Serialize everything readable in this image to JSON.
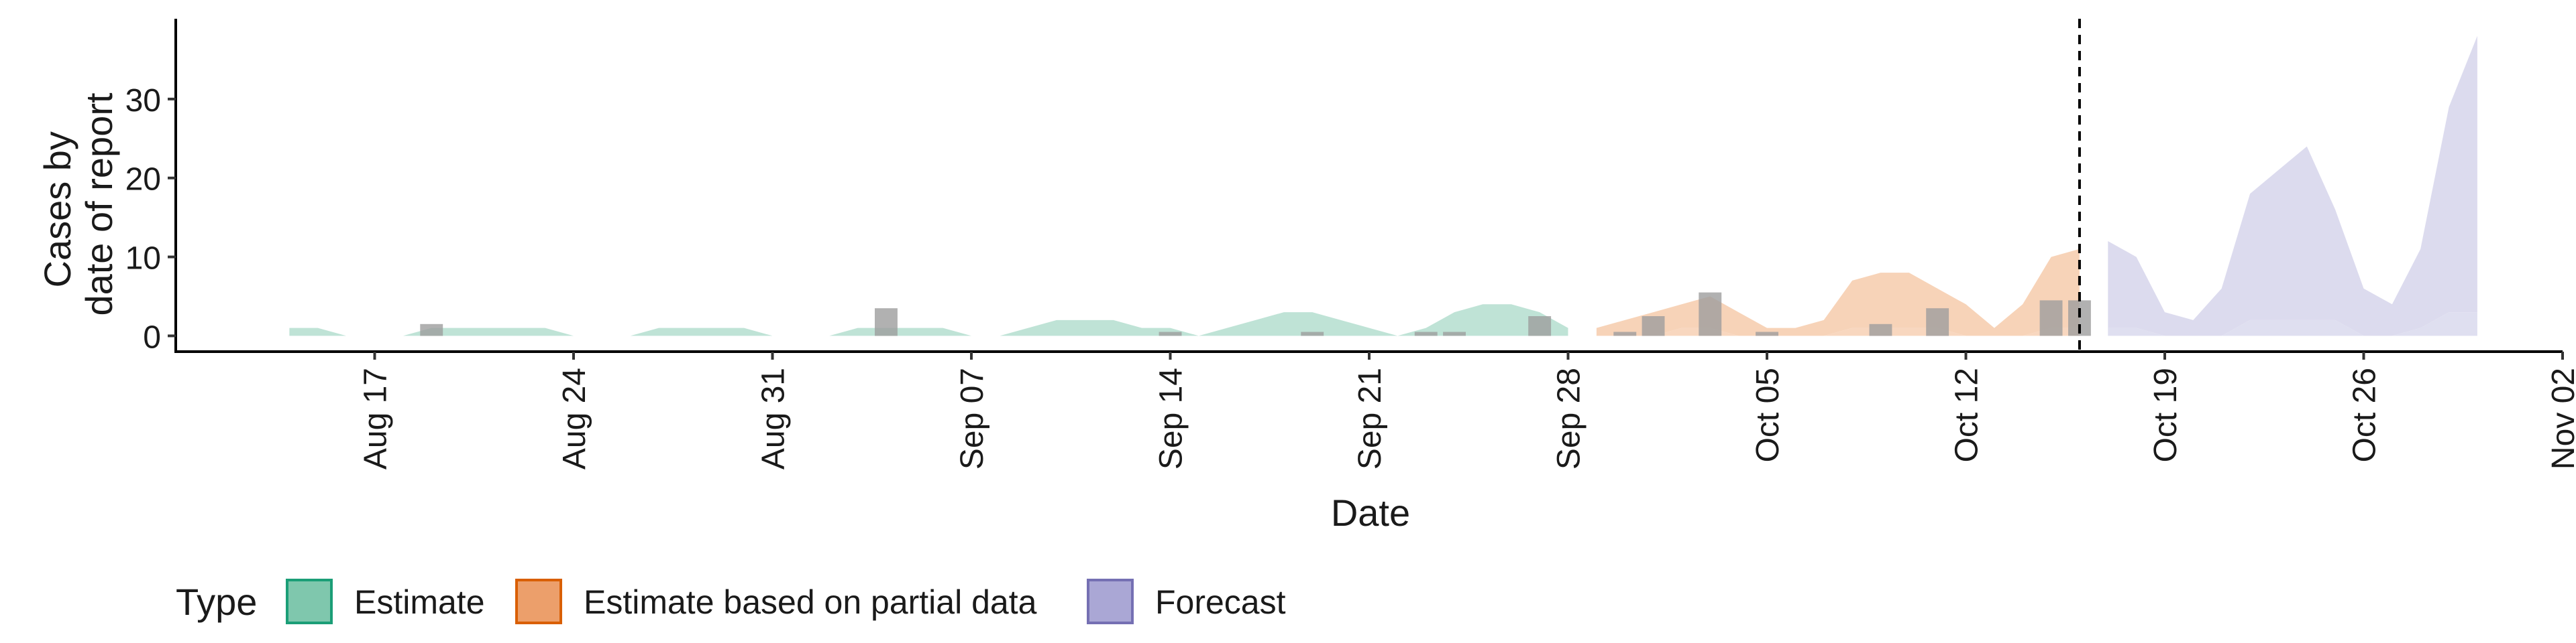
{
  "chart_data": {
    "type": "area",
    "xlabel": "Date",
    "ylabel_lines": [
      "Cases by",
      "date of report"
    ],
    "x_tick_labels": [
      "Aug 17",
      "Aug 24",
      "Aug 31",
      "Sep 07",
      "Sep 14",
      "Sep 21",
      "Sep 28",
      "Oct 05",
      "Oct 12",
      "Oct 19",
      "Oct 26",
      "Nov 02"
    ],
    "x_tick_dates": [
      "2020-08-17",
      "2020-08-24",
      "2020-08-31",
      "2020-09-07",
      "2020-09-14",
      "2020-09-21",
      "2020-09-28",
      "2020-10-05",
      "2020-10-12",
      "2020-10-19",
      "2020-10-26",
      "2020-11-02"
    ],
    "xlim": [
      "2020-08-10",
      "2020-11-02"
    ],
    "ylim": [
      -2,
      40
    ],
    "y_ticks": [
      0,
      10,
      20,
      30
    ],
    "vline_date": "2020-10-16",
    "series": [
      {
        "name": "Estimate",
        "color": "#1b9e77",
        "fill": "#bfe3d6",
        "upper": [
          [
            "2020-08-14",
            1
          ],
          [
            "2020-08-15",
            1
          ],
          [
            "2020-08-16",
            0
          ],
          [
            "2020-08-17",
            0
          ],
          [
            "2020-08-18",
            0
          ],
          [
            "2020-08-19",
            1
          ],
          [
            "2020-08-20",
            1
          ],
          [
            "2020-08-21",
            1
          ],
          [
            "2020-08-22",
            1
          ],
          [
            "2020-08-23",
            1
          ],
          [
            "2020-08-24",
            0
          ],
          [
            "2020-08-25",
            0
          ],
          [
            "2020-08-26",
            0
          ],
          [
            "2020-08-27",
            1
          ],
          [
            "2020-08-28",
            1
          ],
          [
            "2020-08-29",
            1
          ],
          [
            "2020-08-30",
            1
          ],
          [
            "2020-08-31",
            0
          ],
          [
            "2020-09-01",
            0
          ],
          [
            "2020-09-02",
            0
          ],
          [
            "2020-09-03",
            1
          ],
          [
            "2020-09-04",
            1
          ],
          [
            "2020-09-05",
            1
          ],
          [
            "2020-09-06",
            1
          ],
          [
            "2020-09-07",
            0
          ],
          [
            "2020-09-08",
            0
          ],
          [
            "2020-09-09",
            1
          ],
          [
            "2020-09-10",
            2
          ],
          [
            "2020-09-11",
            2
          ],
          [
            "2020-09-12",
            2
          ],
          [
            "2020-09-13",
            1
          ],
          [
            "2020-09-14",
            1
          ],
          [
            "2020-09-15",
            0
          ],
          [
            "2020-09-16",
            1
          ],
          [
            "2020-09-17",
            2
          ],
          [
            "2020-09-18",
            3
          ],
          [
            "2020-09-19",
            3
          ],
          [
            "2020-09-20",
            2
          ],
          [
            "2020-09-21",
            1
          ],
          [
            "2020-09-22",
            0
          ],
          [
            "2020-09-23",
            1
          ],
          [
            "2020-09-24",
            3
          ],
          [
            "2020-09-25",
            4
          ],
          [
            "2020-09-26",
            4
          ],
          [
            "2020-09-27",
            3
          ],
          [
            "2020-09-28",
            1
          ]
        ],
        "lower": []
      },
      {
        "name": "Estimate based on partial data",
        "color": "#d95f02",
        "fill": "#f7d3b8",
        "upper": [
          [
            "2020-09-29",
            1
          ],
          [
            "2020-09-30",
            2
          ],
          [
            "2020-10-01",
            3
          ],
          [
            "2020-10-02",
            4
          ],
          [
            "2020-10-03",
            5
          ],
          [
            "2020-10-04",
            3
          ],
          [
            "2020-10-05",
            1
          ],
          [
            "2020-10-06",
            1
          ],
          [
            "2020-10-07",
            2
          ],
          [
            "2020-10-08",
            7
          ],
          [
            "2020-10-09",
            8
          ],
          [
            "2020-10-10",
            8
          ],
          [
            "2020-10-11",
            6
          ],
          [
            "2020-10-12",
            4
          ],
          [
            "2020-10-13",
            1
          ],
          [
            "2020-10-14",
            4
          ],
          [
            "2020-10-15",
            10
          ],
          [
            "2020-10-16",
            11
          ]
        ],
        "lower": [
          [
            "2020-09-29",
            0
          ],
          [
            "2020-09-30",
            0
          ],
          [
            "2020-10-01",
            0
          ],
          [
            "2020-10-02",
            1
          ],
          [
            "2020-10-03",
            1
          ],
          [
            "2020-10-04",
            0
          ],
          [
            "2020-10-05",
            0
          ],
          [
            "2020-10-06",
            0
          ],
          [
            "2020-10-07",
            0
          ],
          [
            "2020-10-08",
            1
          ],
          [
            "2020-10-09",
            1
          ],
          [
            "2020-10-10",
            1
          ],
          [
            "2020-10-11",
            1
          ],
          [
            "2020-10-12",
            0
          ],
          [
            "2020-10-13",
            0
          ],
          [
            "2020-10-14",
            0
          ],
          [
            "2020-10-15",
            1
          ],
          [
            "2020-10-16",
            1
          ]
        ]
      },
      {
        "name": "Forecast",
        "color": "#7570b3",
        "fill": "#dcdbee",
        "upper": [
          [
            "2020-10-17",
            12
          ],
          [
            "2020-10-18",
            10
          ],
          [
            "2020-10-19",
            3
          ],
          [
            "2020-10-20",
            2
          ],
          [
            "2020-10-21",
            6
          ],
          [
            "2020-10-22",
            18
          ],
          [
            "2020-10-23",
            21
          ],
          [
            "2020-10-24",
            24
          ],
          [
            "2020-10-25",
            16
          ],
          [
            "2020-10-26",
            6
          ],
          [
            "2020-10-27",
            4
          ],
          [
            "2020-10-28",
            11
          ],
          [
            "2020-10-29",
            29
          ],
          [
            "2020-10-30",
            38
          ]
        ],
        "lower": [
          [
            "2020-10-17",
            1
          ],
          [
            "2020-10-18",
            1
          ],
          [
            "2020-10-19",
            0
          ],
          [
            "2020-10-20",
            0
          ],
          [
            "2020-10-21",
            0
          ],
          [
            "2020-10-22",
            2
          ],
          [
            "2020-10-23",
            2
          ],
          [
            "2020-10-24",
            2
          ],
          [
            "2020-10-25",
            2
          ],
          [
            "2020-10-26",
            0
          ],
          [
            "2020-10-27",
            0
          ],
          [
            "2020-10-28",
            1
          ],
          [
            "2020-10-29",
            3
          ],
          [
            "2020-10-30",
            3
          ]
        ]
      }
    ],
    "reported_cases": [
      [
        "2020-08-19",
        1.5
      ],
      [
        "2020-09-04",
        3.5
      ],
      [
        "2020-09-14",
        0.5
      ],
      [
        "2020-09-19",
        0.5
      ],
      [
        "2020-09-23",
        0.5
      ],
      [
        "2020-09-24",
        0.5
      ],
      [
        "2020-09-27",
        2.5
      ],
      [
        "2020-09-30",
        0.5
      ],
      [
        "2020-10-01",
        2.5
      ],
      [
        "2020-10-03",
        5.5
      ],
      [
        "2020-10-05",
        0.5
      ],
      [
        "2020-10-09",
        1.5
      ],
      [
        "2020-10-11",
        3.5
      ],
      [
        "2020-10-15",
        4.5
      ],
      [
        "2020-10-16",
        4.5
      ]
    ],
    "bar_color": "#9e9e9e",
    "legend": {
      "title": "Type",
      "position": "bottom",
      "entries": [
        {
          "label": "Estimate",
          "fill": "#7fc7ad",
          "stroke": "#1b9e77"
        },
        {
          "label": "Estimate based on partial data",
          "fill": "#ec9f6b",
          "stroke": "#d95f02"
        },
        {
          "label": "Forecast",
          "fill": "#aaa7d5",
          "stroke": "#7570b3"
        }
      ]
    }
  }
}
